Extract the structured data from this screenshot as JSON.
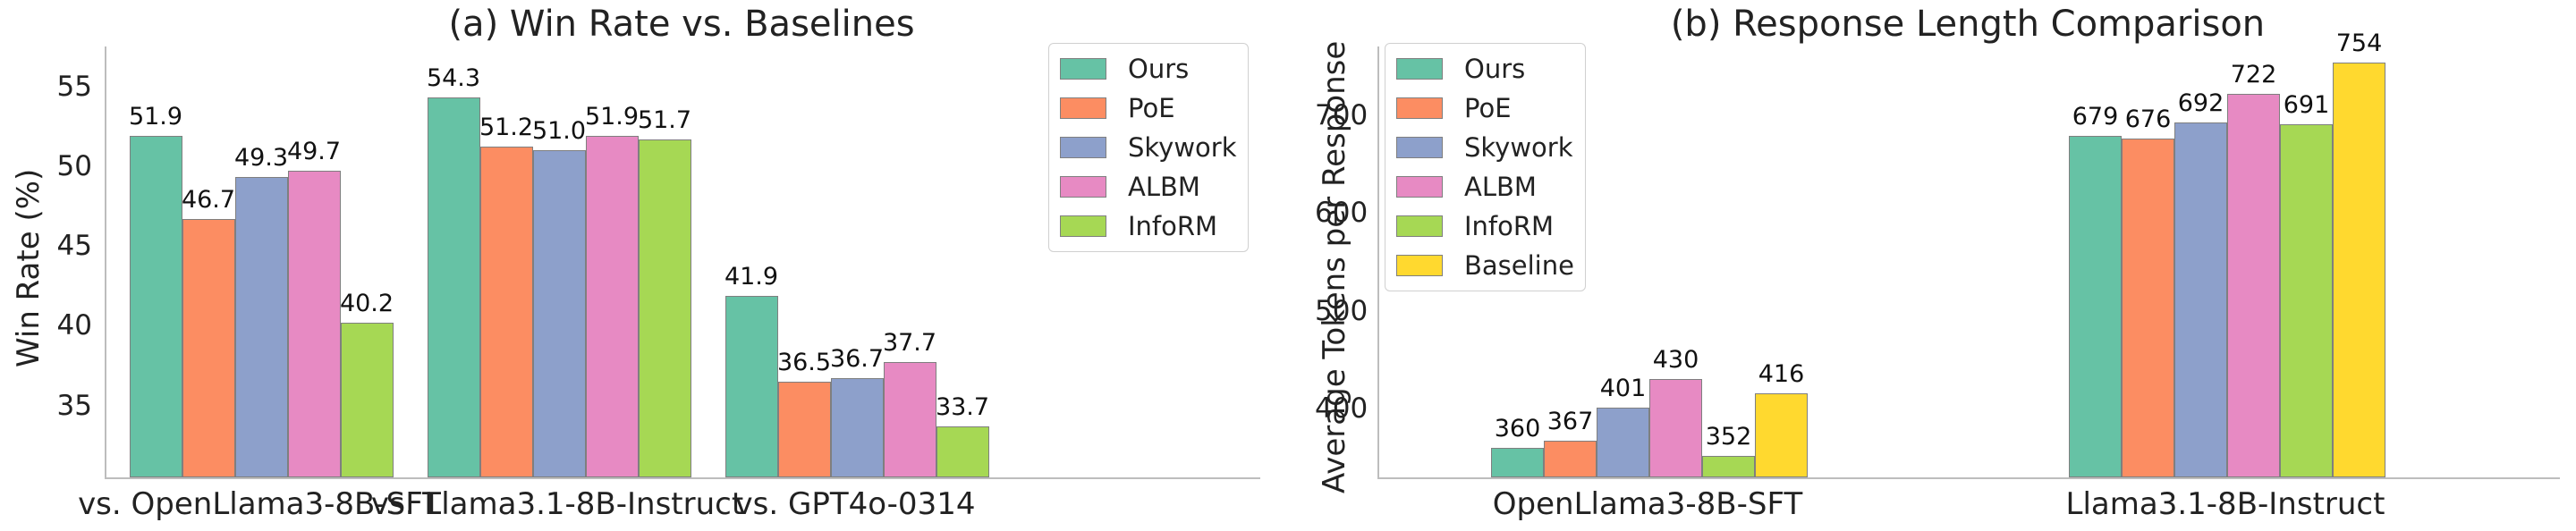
{
  "chart_data": [
    {
      "type": "bar",
      "title": "(a) Win Rate vs. Baselines",
      "xlabel": "",
      "ylabel": "Win Rate (%)",
      "ylim": [
        30.5,
        57.5
      ],
      "yticks": [
        35,
        40,
        45,
        50,
        55
      ],
      "grid": false,
      "legend_position": "upper right",
      "categories": [
        "vs. OpenLlama3-8B-SFT",
        "vs. Llama3.1-8B-Instruct",
        "vs. GPT4o-0314"
      ],
      "series": [
        {
          "name": "Ours",
          "color": "#66c2a5",
          "values": [
            51.9,
            54.3,
            41.9
          ]
        },
        {
          "name": "PoE",
          "color": "#fc8d62",
          "values": [
            46.7,
            51.2,
            36.5
          ]
        },
        {
          "name": "Skywork",
          "color": "#8da0cb",
          "values": [
            49.3,
            51.0,
            36.7
          ]
        },
        {
          "name": "ALBM",
          "color": "#e78ac3",
          "values": [
            49.7,
            51.9,
            37.7
          ]
        },
        {
          "name": "InfoRM",
          "color": "#a6d854",
          "values": [
            40.2,
            51.7,
            33.7
          ]
        }
      ]
    },
    {
      "type": "bar",
      "title": "(b) Response Length Comparison",
      "xlabel": "",
      "ylabel": "Average Tokens per Response",
      "ylim": [
        330,
        770
      ],
      "yticks": [
        400,
        500,
        600,
        700
      ],
      "grid": false,
      "legend_position": "upper left",
      "categories": [
        "OpenLlama3-8B-SFT",
        "Llama3.1-8B-Instruct"
      ],
      "series": [
        {
          "name": "Ours",
          "color": "#66c2a5",
          "values": [
            360,
            679
          ]
        },
        {
          "name": "PoE",
          "color": "#fc8d62",
          "values": [
            367,
            676
          ]
        },
        {
          "name": "Skywork",
          "color": "#8da0cb",
          "values": [
            401,
            692
          ]
        },
        {
          "name": "ALBM",
          "color": "#e78ac3",
          "values": [
            430,
            722
          ]
        },
        {
          "name": "InfoRM",
          "color": "#a6d854",
          "values": [
            352,
            691
          ]
        },
        {
          "name": "Baseline",
          "color": "#ffd92f",
          "values": [
            416,
            754
          ]
        }
      ]
    }
  ]
}
